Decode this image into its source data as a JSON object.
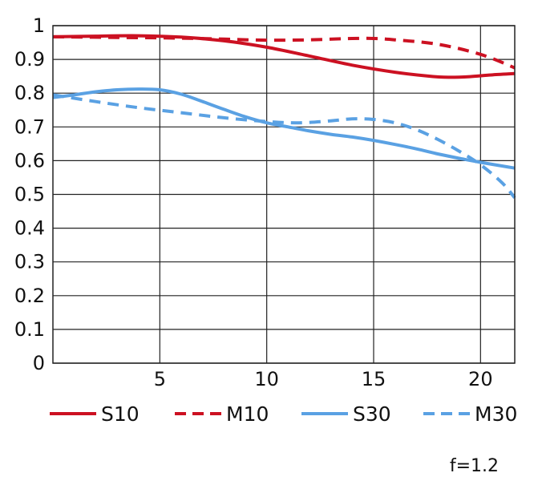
{
  "chart_data": {
    "type": "line",
    "x_ticks": [
      "5",
      "10",
      "15",
      "20"
    ],
    "y_ticks": [
      "0",
      "0.1",
      "0.2",
      "0.3",
      "0.4",
      "0.5",
      "0.6",
      "0.7",
      "0.8",
      "0.9",
      "1"
    ],
    "xlim": [
      0,
      21.6
    ],
    "ylim": [
      0,
      1
    ],
    "grid": true,
    "legend_position": "bottom",
    "note": "f=1.2",
    "series": [
      {
        "name": "S10",
        "color": "#cc1122",
        "dash": "solid",
        "points": [
          [
            0,
            0.967
          ],
          [
            2,
            0.969
          ],
          [
            4,
            0.97
          ],
          [
            6,
            0.966
          ],
          [
            8,
            0.955
          ],
          [
            10,
            0.936
          ],
          [
            12,
            0.91
          ],
          [
            14,
            0.883
          ],
          [
            16,
            0.862
          ],
          [
            17.5,
            0.851
          ],
          [
            18.5,
            0.847
          ],
          [
            19.5,
            0.849
          ],
          [
            20.5,
            0.854
          ],
          [
            21.6,
            0.858
          ]
        ]
      },
      {
        "name": "M10",
        "color": "#cc1122",
        "dash": "dashed",
        "points": [
          [
            0,
            0.967
          ],
          [
            3,
            0.965
          ],
          [
            6,
            0.963
          ],
          [
            8,
            0.96
          ],
          [
            10,
            0.957
          ],
          [
            12,
            0.958
          ],
          [
            14,
            0.962
          ],
          [
            15,
            0.962
          ],
          [
            16,
            0.958
          ],
          [
            18,
            0.945
          ],
          [
            20,
            0.915
          ],
          [
            21.6,
            0.875
          ]
        ]
      },
      {
        "name": "S30",
        "color": "#5aa1e3",
        "dash": "solid",
        "points": [
          [
            0,
            0.787
          ],
          [
            1,
            0.795
          ],
          [
            2,
            0.804
          ],
          [
            3,
            0.81
          ],
          [
            4,
            0.812
          ],
          [
            5,
            0.81
          ],
          [
            6,
            0.797
          ],
          [
            7,
            0.775
          ],
          [
            8,
            0.752
          ],
          [
            9,
            0.73
          ],
          [
            10,
            0.712
          ],
          [
            11,
            0.7
          ],
          [
            12,
            0.688
          ],
          [
            13,
            0.678
          ],
          [
            14,
            0.67
          ],
          [
            15,
            0.66
          ],
          [
            16,
            0.648
          ],
          [
            17,
            0.635
          ],
          [
            18,
            0.62
          ],
          [
            19,
            0.607
          ],
          [
            20,
            0.595
          ],
          [
            21.6,
            0.578
          ]
        ]
      },
      {
        "name": "M30",
        "color": "#5aa1e3",
        "dash": "dashed",
        "points": [
          [
            0,
            0.795
          ],
          [
            2,
            0.775
          ],
          [
            4,
            0.757
          ],
          [
            6,
            0.742
          ],
          [
            8,
            0.727
          ],
          [
            10,
            0.716
          ],
          [
            11.5,
            0.712
          ],
          [
            13,
            0.718
          ],
          [
            14,
            0.724
          ],
          [
            15,
            0.722
          ],
          [
            16,
            0.712
          ],
          [
            17,
            0.692
          ],
          [
            18,
            0.663
          ],
          [
            19,
            0.628
          ],
          [
            20,
            0.588
          ],
          [
            21,
            0.535
          ],
          [
            21.6,
            0.49
          ]
        ]
      }
    ]
  }
}
